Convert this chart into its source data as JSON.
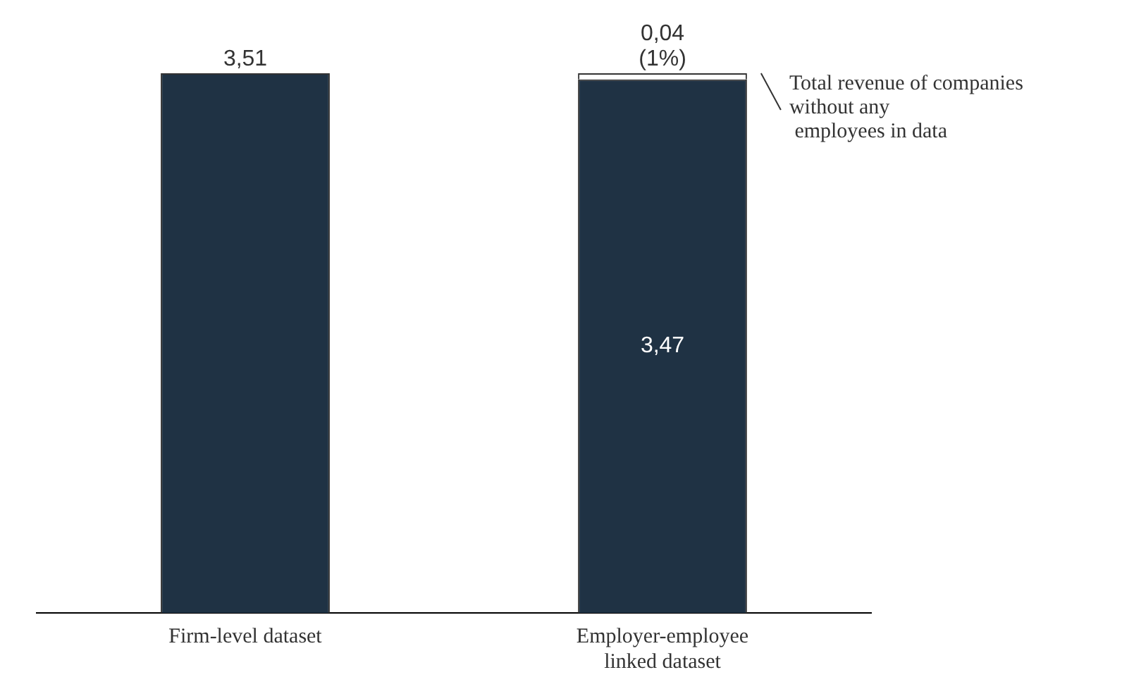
{
  "chart_data": {
    "type": "bar",
    "stacked": true,
    "categories": [
      "Firm-level dataset",
      "Employer-employee\nlinked dataset"
    ],
    "series": [
      {
        "color": "#1f3244",
        "values": [
          3.51,
          3.47
        ],
        "value_labels": [
          "3,51",
          "3,47"
        ]
      },
      {
        "color": "#ffffff",
        "values": [
          null,
          0.04
        ],
        "value_labels": [
          null,
          "0,04\n(1%)"
        ]
      }
    ],
    "annotations": [
      "Total revenue of companies\nwithout any\n employees in data"
    ],
    "grid": false,
    "legend": false
  }
}
